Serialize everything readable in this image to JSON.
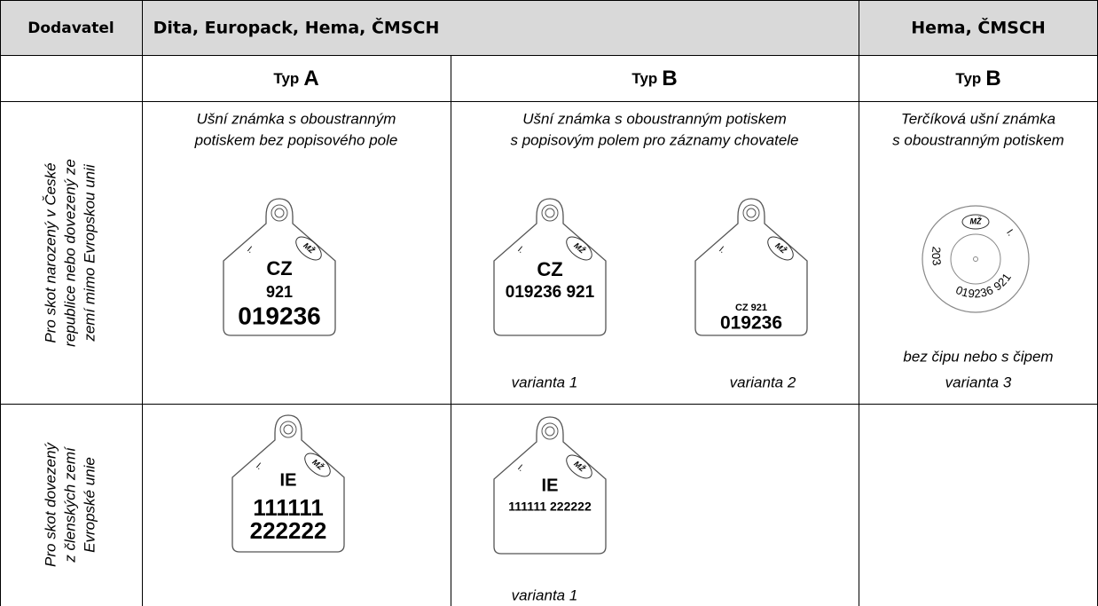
{
  "table": {
    "header": {
      "supplier": "Dodavatel",
      "group1": "Dita, Europack, Hema, ČMSCH",
      "group2": "Hema, ČMSCH"
    },
    "types": [
      {
        "prefix": "Typ",
        "letter": "A"
      },
      {
        "prefix": "Typ",
        "letter": "B"
      },
      {
        "prefix": "Typ",
        "letter": "B"
      }
    ],
    "rows": [
      {
        "label": [
          "Pro skot narozený v České",
          "republice nebo dovezený ze",
          "zemí mimo Evropskou unii"
        ],
        "cells": [
          {
            "caption": [
              "Ušní známka s oboustranným",
              "potiskem bez popisového pole"
            ],
            "tags": [
              {
                "mark": "I.",
                "logo": "MŽ",
                "lines": [
                  "CZ",
                  "921",
                  "019236"
                ]
              }
            ]
          },
          {
            "caption": [
              "Ušní známka s oboustranným potiskem",
              "s popisovým polem pro záznamy chovatele"
            ],
            "tags": [
              {
                "mark": "I.",
                "logo": "MŽ",
                "lines": [
                  "CZ",
                  "019236 921"
                ],
                "variant": "varianta 1"
              },
              {
                "mark": "I.",
                "logo": "MŽ",
                "lines": [
                  "CZ 921",
                  "019236"
                ],
                "variant": "varianta 2"
              }
            ]
          },
          {
            "caption": [
              "Terčíková ušní známka",
              "s oboustranným potiskem"
            ],
            "tags": [
              {
                "mark": "I.",
                "logo": "MŽ",
                "rim": [
                  "203",
                  "019236 921"
                ],
                "note": "bez čipu nebo s čipem",
                "variant": "varianta 3"
              }
            ]
          }
        ]
      },
      {
        "label": [
          "Pro skot dovezený",
          "z členských zemí",
          "Evropské unie"
        ],
        "cells": [
          {
            "tags": [
              {
                "mark": "I.",
                "logo": "MŽ",
                "lines": [
                  "IE",
                  "111111",
                  "222222"
                ]
              }
            ]
          },
          {
            "tags": [
              {
                "mark": "I.",
                "logo": "MŽ",
                "lines": [
                  "IE",
                  "111111 222222"
                ],
                "variant": "varianta 1"
              }
            ]
          }
        ]
      }
    ]
  }
}
